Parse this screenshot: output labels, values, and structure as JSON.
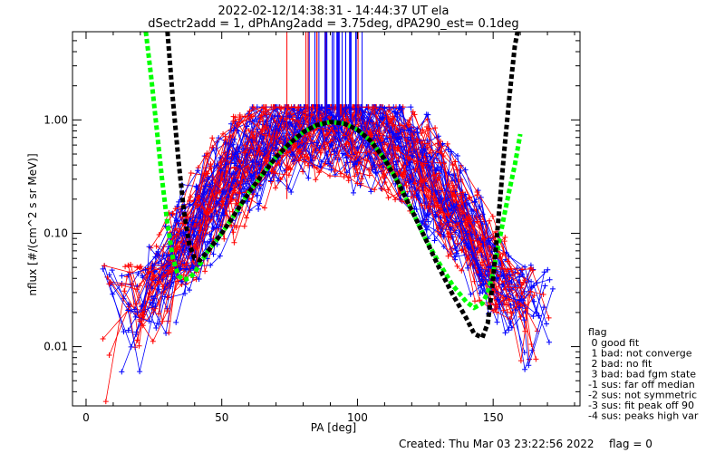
{
  "chart_data": {
    "type": "line",
    "title_line1": "2022-02-12/14:38:31 - 14:44:37 UT ela",
    "title_line2": "dSectr2add = 1, dPhAng2add = 3.75deg, dPA290_est=   0.1deg",
    "xlabel": "PA [deg]",
    "ylabel": "nflux [#/(cm^2 s sr MeV)]",
    "xlim": [
      -5,
      182
    ],
    "ylim": [
      0.003,
      6.0
    ],
    "yscale": "log",
    "xticks": [
      0,
      50,
      100,
      150
    ],
    "xtick_labels": [
      "0",
      "50",
      "100",
      "150"
    ],
    "yticks": [
      0.01,
      0.1,
      1.0
    ],
    "ytick_labels": [
      "0.01",
      "0.10",
      "1.00"
    ],
    "grid": false,
    "legend_title": "flag",
    "legend_items": [
      " 0 good fit",
      " 1 bad: not converge",
      " 2 bad: no fit",
      " 3 bad: bad fgm state",
      "-1 sus: far off median",
      "-2 sus: not symmetric",
      "-3 sus: fit peak off 90",
      "-4 sus: peaks high var"
    ],
    "legend_position": "right",
    "footer_created": "Created: Thu Mar 03 23:22:56 2022",
    "footer_flag": "flag = 0",
    "colors": {
      "blue_spectra": "#0000ff",
      "red_spectra": "#ff0000",
      "fit_black": "#000000",
      "fit_green": "#00ff00"
    },
    "series": [
      {
        "style": "black-dashed-fit",
        "points": [
          [
            30,
            6.0
          ],
          [
            32,
            1.5
          ],
          [
            34,
            0.45
          ],
          [
            36,
            0.16
          ],
          [
            38,
            0.08
          ],
          [
            40,
            0.06
          ],
          [
            42,
            0.058
          ],
          [
            45,
            0.07
          ],
          [
            50,
            0.1
          ],
          [
            55,
            0.15
          ],
          [
            60,
            0.23
          ],
          [
            65,
            0.33
          ],
          [
            70,
            0.47
          ],
          [
            75,
            0.62
          ],
          [
            80,
            0.78
          ],
          [
            85,
            0.9
          ],
          [
            90,
            0.96
          ],
          [
            95,
            0.93
          ],
          [
            100,
            0.82
          ],
          [
            105,
            0.65
          ],
          [
            110,
            0.45
          ],
          [
            115,
            0.28
          ],
          [
            120,
            0.16
          ],
          [
            125,
            0.09
          ],
          [
            130,
            0.05
          ],
          [
            135,
            0.029
          ],
          [
            140,
            0.018
          ],
          [
            143,
            0.013
          ],
          [
            146,
            0.012
          ],
          [
            148,
            0.016
          ],
          [
            150,
            0.04
          ],
          [
            152,
            0.14
          ],
          [
            154,
            0.5
          ],
          [
            156,
            1.6
          ],
          [
            158,
            4.5
          ],
          [
            159,
            6.0
          ]
        ]
      },
      {
        "style": "green-dashed-fit",
        "points": [
          [
            22,
            6.0
          ],
          [
            24,
            2.4
          ],
          [
            26,
            0.85
          ],
          [
            28,
            0.3
          ],
          [
            30,
            0.12
          ],
          [
            32,
            0.06
          ],
          [
            34,
            0.042
          ],
          [
            36,
            0.039
          ],
          [
            38,
            0.04
          ],
          [
            40,
            0.045
          ],
          [
            45,
            0.07
          ],
          [
            50,
            0.1
          ],
          [
            55,
            0.15
          ],
          [
            60,
            0.23
          ],
          [
            65,
            0.33
          ],
          [
            70,
            0.47
          ],
          [
            75,
            0.62
          ],
          [
            80,
            0.78
          ],
          [
            85,
            0.9
          ],
          [
            90,
            0.96
          ],
          [
            95,
            0.93
          ],
          [
            100,
            0.82
          ],
          [
            105,
            0.65
          ],
          [
            110,
            0.45
          ],
          [
            115,
            0.28
          ],
          [
            120,
            0.16
          ],
          [
            125,
            0.09
          ],
          [
            130,
            0.055
          ],
          [
            135,
            0.035
          ],
          [
            140,
            0.025
          ],
          [
            143,
            0.022
          ],
          [
            146,
            0.024
          ],
          [
            148,
            0.03
          ],
          [
            150,
            0.045
          ],
          [
            152,
            0.08
          ],
          [
            154,
            0.14
          ],
          [
            156,
            0.24
          ],
          [
            158,
            0.4
          ],
          [
            160,
            0.75
          ]
        ]
      }
    ]
  }
}
